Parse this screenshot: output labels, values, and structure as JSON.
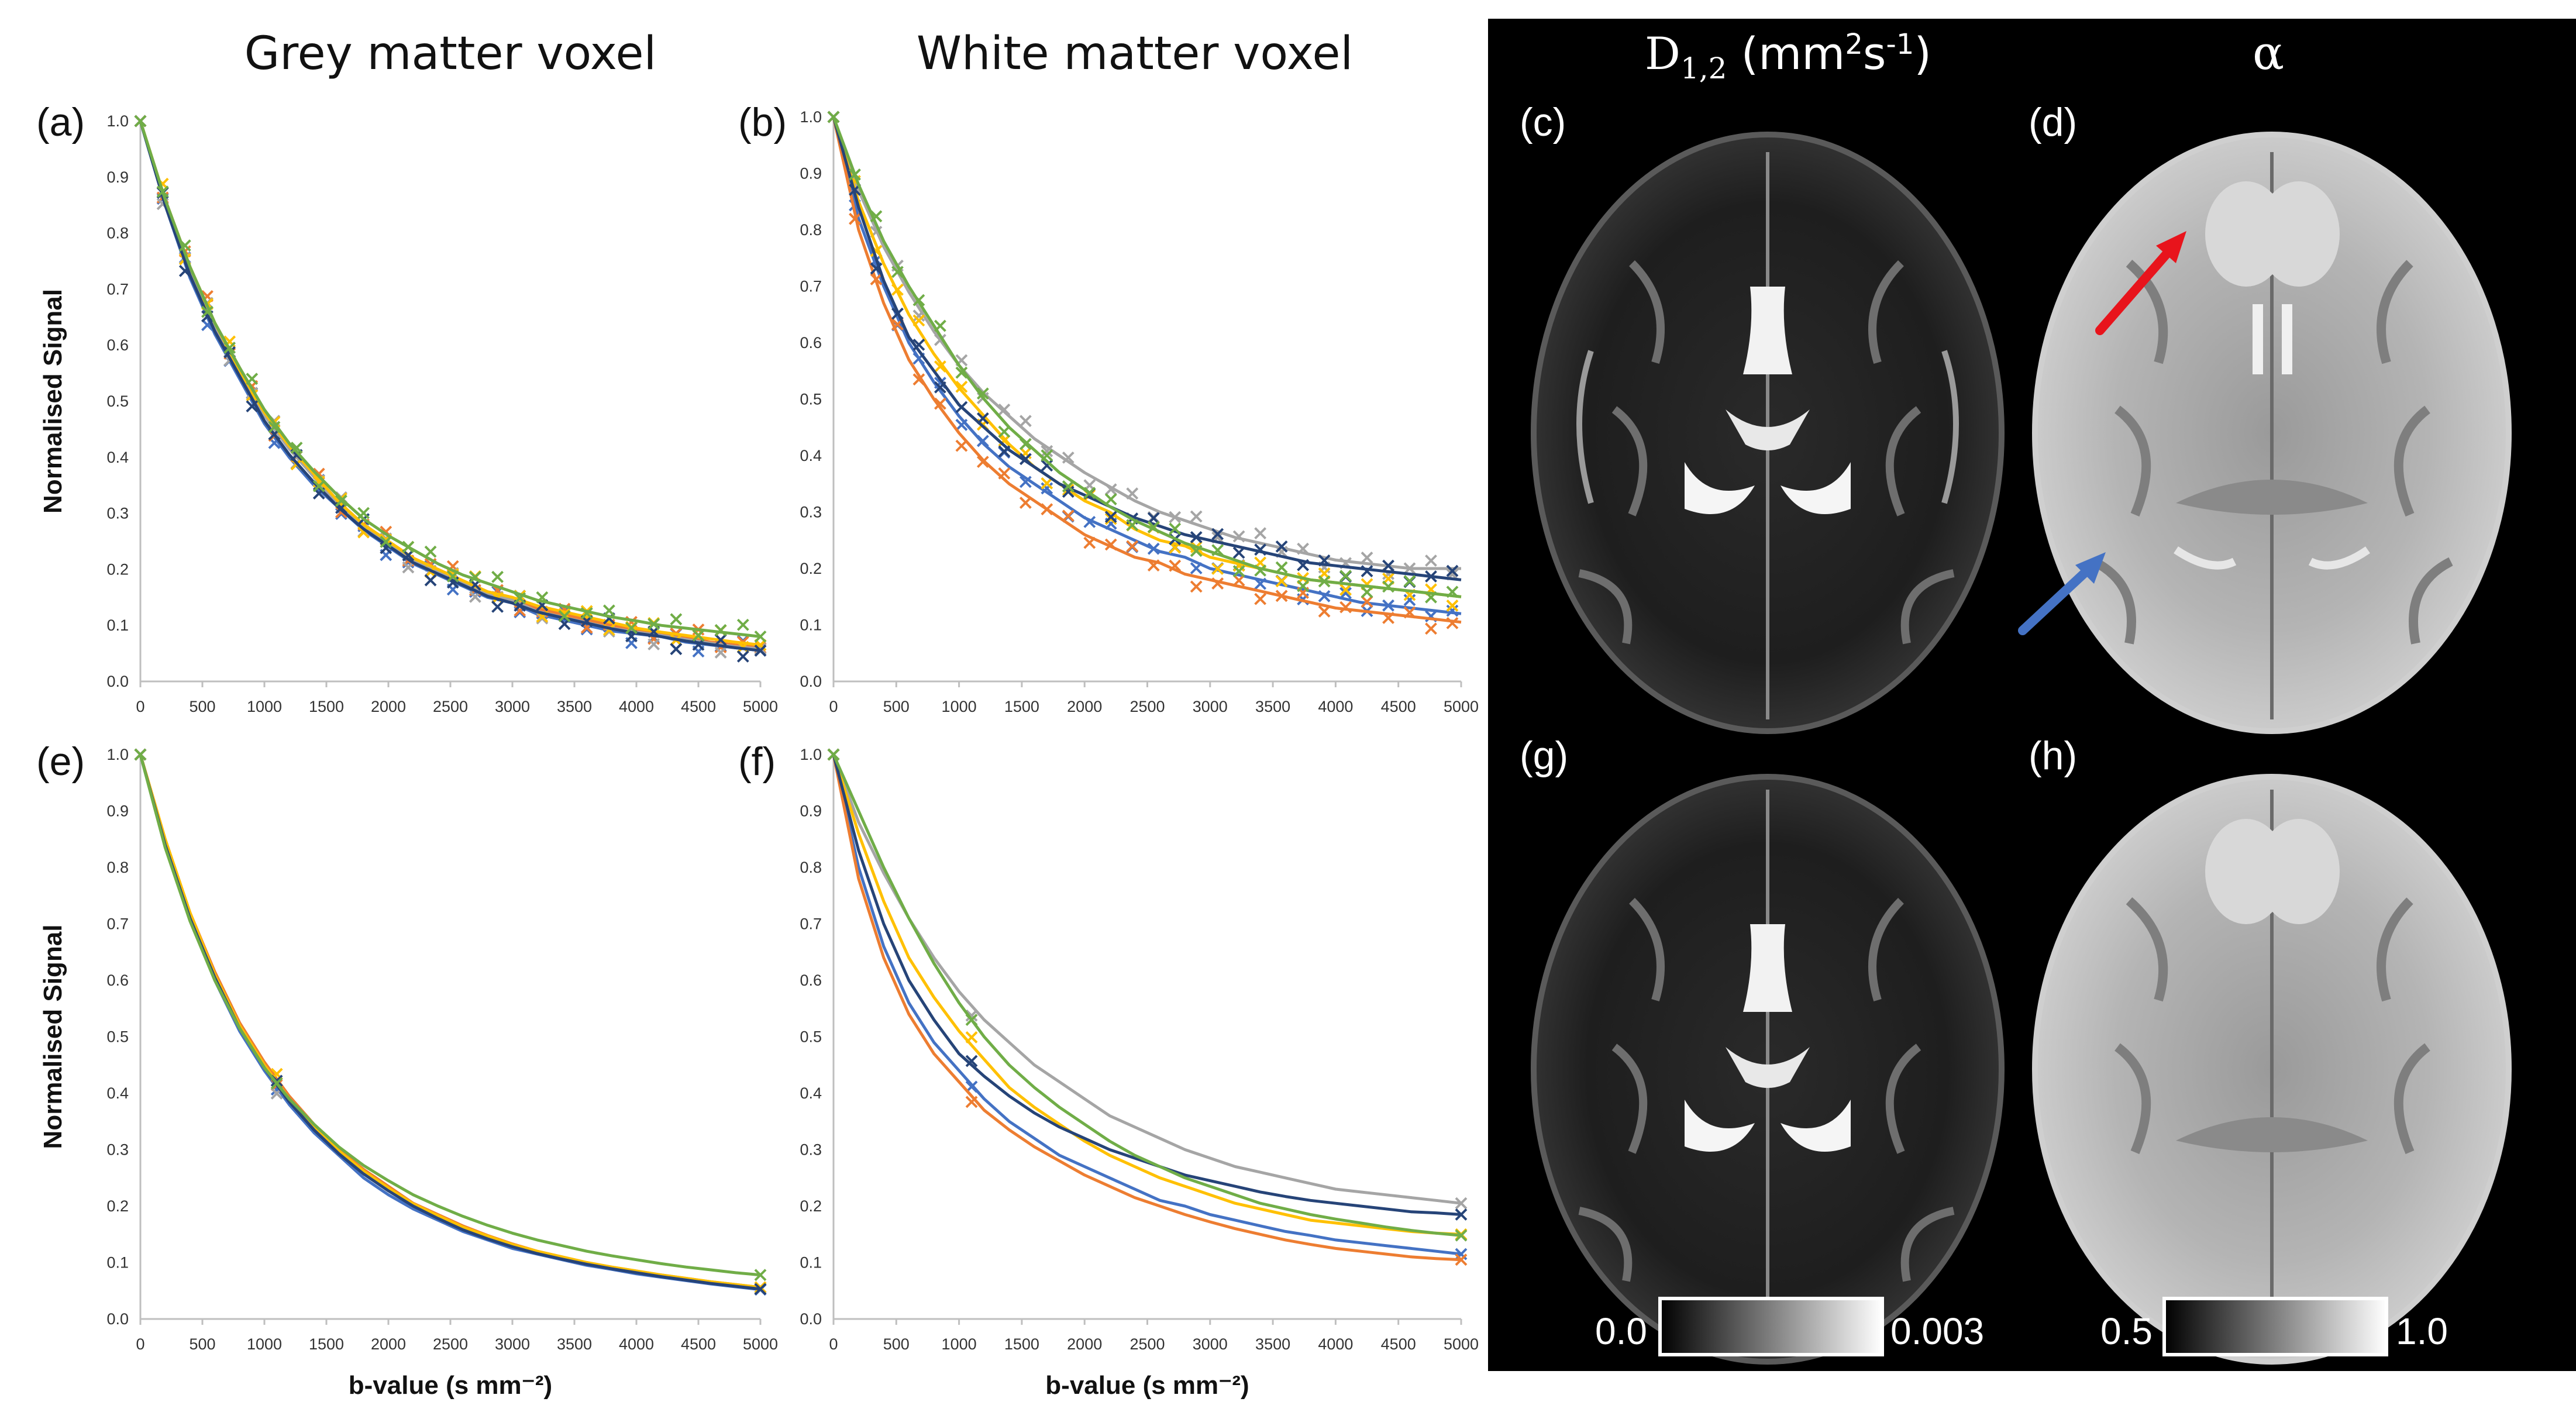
{
  "column_titles": {
    "grey": "Grey matter voxel",
    "white": "White matter voxel",
    "d12_prefix": "D",
    "d12_sub": "1,2",
    "d12_unit_open": " (mm",
    "d12_unit_sup2": "2",
    "d12_unit_mid": "s",
    "d12_unit_sup": "-1",
    "d12_unit_close": ")",
    "alpha": "α"
  },
  "panel_labels": [
    "(a)",
    "(b)",
    "(c)",
    "(d)",
    "(e)",
    "(f)",
    "(g)",
    "(h)"
  ],
  "colorbars": {
    "d12": {
      "min": "0.0",
      "max": "0.003"
    },
    "alpha": {
      "min": "0.5",
      "max": "1.0"
    }
  },
  "arrows": [
    {
      "panel": "d",
      "color": "#e8141c",
      "label": "red-arrow"
    },
    {
      "panel": "d",
      "color": "#4472c4",
      "label": "blue-arrow"
    }
  ],
  "chart_data": [
    {
      "panel": "(a)",
      "type": "line",
      "xlabel": "",
      "ylabel": "Normalised Signal",
      "xlim": [
        0,
        5000
      ],
      "ylim": [
        0,
        1.0
      ],
      "xticks": [
        0,
        500,
        1000,
        1500,
        2000,
        2500,
        3000,
        3500,
        4000,
        4500,
        5000
      ],
      "yticks": [
        0.0,
        0.1,
        0.2,
        0.3,
        0.4,
        0.5,
        0.6,
        0.7,
        0.8,
        0.9,
        1.0
      ],
      "x": [
        0,
        200,
        400,
        600,
        800,
        1000,
        1200,
        1400,
        1600,
        1800,
        2000,
        2200,
        2400,
        2600,
        2800,
        3000,
        3200,
        3400,
        3600,
        3800,
        4000,
        4200,
        4400,
        4600,
        4800,
        5000
      ],
      "series": [
        {
          "name": "blue",
          "color": "#4472c4",
          "values": [
            1.0,
            0.85,
            0.72,
            0.62,
            0.54,
            0.46,
            0.4,
            0.35,
            0.31,
            0.27,
            0.24,
            0.21,
            0.19,
            0.17,
            0.15,
            0.14,
            0.12,
            0.11,
            0.1,
            0.09,
            0.085,
            0.08,
            0.07,
            0.065,
            0.06,
            0.055
          ]
        },
        {
          "name": "orange",
          "color": "#ed7d31",
          "values": [
            1.0,
            0.86,
            0.74,
            0.64,
            0.56,
            0.48,
            0.42,
            0.37,
            0.32,
            0.28,
            0.25,
            0.22,
            0.2,
            0.18,
            0.16,
            0.15,
            0.13,
            0.12,
            0.11,
            0.1,
            0.09,
            0.085,
            0.08,
            0.07,
            0.065,
            0.06
          ]
        },
        {
          "name": "grey",
          "color": "#a5a5a5",
          "values": [
            1.0,
            0.855,
            0.735,
            0.635,
            0.555,
            0.475,
            0.415,
            0.365,
            0.315,
            0.275,
            0.245,
            0.215,
            0.195,
            0.175,
            0.155,
            0.145,
            0.125,
            0.115,
            0.105,
            0.095,
            0.088,
            0.082,
            0.075,
            0.068,
            0.062,
            0.058
          ]
        },
        {
          "name": "yellow",
          "color": "#ffc000",
          "values": [
            1.0,
            0.86,
            0.74,
            0.64,
            0.555,
            0.48,
            0.42,
            0.37,
            0.32,
            0.28,
            0.25,
            0.22,
            0.2,
            0.18,
            0.16,
            0.15,
            0.135,
            0.125,
            0.115,
            0.105,
            0.095,
            0.088,
            0.082,
            0.076,
            0.07,
            0.065
          ]
        },
        {
          "name": "darkblue",
          "color": "#264478",
          "values": [
            1.0,
            0.85,
            0.725,
            0.625,
            0.545,
            0.465,
            0.405,
            0.355,
            0.31,
            0.272,
            0.242,
            0.212,
            0.192,
            0.172,
            0.152,
            0.14,
            0.124,
            0.114,
            0.104,
            0.094,
            0.086,
            0.08,
            0.072,
            0.066,
            0.06,
            0.055
          ]
        },
        {
          "name": "green",
          "color": "#70ad47",
          "values": [
            1.0,
            0.86,
            0.74,
            0.64,
            0.56,
            0.485,
            0.425,
            0.375,
            0.33,
            0.29,
            0.26,
            0.235,
            0.21,
            0.19,
            0.175,
            0.16,
            0.145,
            0.135,
            0.125,
            0.115,
            0.108,
            0.1,
            0.095,
            0.09,
            0.085,
            0.08
          ]
        }
      ],
      "markers": "x",
      "marker_x": [
        0,
        180,
        360,
        540,
        720,
        900,
        1080,
        1260,
        1440,
        1620,
        1800,
        1980,
        2160,
        2340,
        2520,
        2700,
        2880,
        3060,
        3240,
        3420,
        3600,
        3780,
        3960,
        4140,
        4320,
        4500,
        4680,
        4860,
        5000
      ]
    },
    {
      "panel": "(b)",
      "type": "line",
      "xlabel": "",
      "ylabel": "",
      "xlim": [
        0,
        5000
      ],
      "ylim": [
        0,
        1.0
      ],
      "xticks": [
        0,
        500,
        1000,
        1500,
        2000,
        2500,
        3000,
        3500,
        4000,
        4500,
        5000
      ],
      "yticks": [
        0.0,
        0.1,
        0.2,
        0.3,
        0.4,
        0.5,
        0.6,
        0.7,
        0.8,
        0.9,
        1.0
      ],
      "x": [
        0,
        200,
        400,
        600,
        800,
        1000,
        1200,
        1400,
        1600,
        1800,
        2000,
        2200,
        2400,
        2600,
        2800,
        3000,
        3200,
        3400,
        3600,
        3800,
        4000,
        4200,
        4400,
        4600,
        4800,
        5000
      ],
      "series": [
        {
          "name": "blue",
          "color": "#4472c4",
          "values": [
            1.0,
            0.82,
            0.7,
            0.6,
            0.53,
            0.47,
            0.42,
            0.38,
            0.35,
            0.32,
            0.29,
            0.27,
            0.25,
            0.23,
            0.22,
            0.2,
            0.19,
            0.18,
            0.17,
            0.16,
            0.15,
            0.14,
            0.135,
            0.13,
            0.125,
            0.12
          ]
        },
        {
          "name": "orange",
          "color": "#ed7d31",
          "values": [
            1.0,
            0.8,
            0.67,
            0.57,
            0.5,
            0.44,
            0.39,
            0.35,
            0.32,
            0.29,
            0.26,
            0.24,
            0.22,
            0.21,
            0.19,
            0.18,
            0.17,
            0.16,
            0.15,
            0.14,
            0.13,
            0.125,
            0.12,
            0.115,
            0.11,
            0.105
          ]
        },
        {
          "name": "grey",
          "color": "#a5a5a5",
          "values": [
            1.0,
            0.87,
            0.77,
            0.69,
            0.62,
            0.56,
            0.51,
            0.47,
            0.43,
            0.4,
            0.37,
            0.345,
            0.32,
            0.3,
            0.285,
            0.27,
            0.255,
            0.245,
            0.235,
            0.225,
            0.215,
            0.21,
            0.205,
            0.2,
            0.2,
            0.2
          ]
        },
        {
          "name": "yellow",
          "color": "#ffc000",
          "values": [
            1.0,
            0.85,
            0.74,
            0.65,
            0.58,
            0.52,
            0.47,
            0.42,
            0.38,
            0.35,
            0.32,
            0.3,
            0.27,
            0.25,
            0.24,
            0.22,
            0.21,
            0.2,
            0.19,
            0.18,
            0.175,
            0.17,
            0.165,
            0.16,
            0.155,
            0.15
          ]
        },
        {
          "name": "darkblue",
          "color": "#264478",
          "values": [
            1.0,
            0.84,
            0.71,
            0.61,
            0.55,
            0.49,
            0.45,
            0.41,
            0.38,
            0.35,
            0.33,
            0.31,
            0.29,
            0.275,
            0.26,
            0.25,
            0.24,
            0.23,
            0.22,
            0.21,
            0.205,
            0.2,
            0.195,
            0.19,
            0.185,
            0.18
          ]
        },
        {
          "name": "green",
          "color": "#70ad47",
          "values": [
            1.0,
            0.88,
            0.78,
            0.7,
            0.63,
            0.56,
            0.5,
            0.45,
            0.41,
            0.37,
            0.34,
            0.31,
            0.285,
            0.265,
            0.245,
            0.23,
            0.215,
            0.2,
            0.19,
            0.18,
            0.175,
            0.17,
            0.165,
            0.16,
            0.155,
            0.15
          ]
        }
      ],
      "markers": "x",
      "marker_x": [
        0,
        170,
        340,
        510,
        680,
        850,
        1020,
        1190,
        1360,
        1530,
        1700,
        1870,
        2040,
        2210,
        2380,
        2550,
        2720,
        2890,
        3060,
        3230,
        3400,
        3570,
        3740,
        3910,
        4080,
        4250,
        4420,
        4590,
        4760,
        4930
      ]
    },
    {
      "panel": "(e)",
      "type": "line",
      "xlabel": "b-value (s mm⁻²)",
      "ylabel": "Normalised Signal",
      "xlim": [
        0,
        5000
      ],
      "ylim": [
        0,
        1.0
      ],
      "xticks": [
        0,
        500,
        1000,
        1500,
        2000,
        2500,
        3000,
        3500,
        4000,
        4500,
        5000
      ],
      "yticks": [
        0.0,
        0.1,
        0.2,
        0.3,
        0.4,
        0.5,
        0.6,
        0.7,
        0.8,
        0.9,
        1.0
      ],
      "x": [
        0,
        200,
        400,
        600,
        800,
        1000,
        1200,
        1400,
        1600,
        1800,
        2000,
        2200,
        2400,
        2600,
        2800,
        3000,
        3200,
        3400,
        3600,
        3800,
        4000,
        4200,
        4400,
        4600,
        4800,
        5000
      ],
      "series": [
        {
          "name": "blue",
          "color": "#4472c4",
          "values": [
            1.0,
            0.84,
            0.71,
            0.6,
            0.51,
            0.44,
            0.38,
            0.33,
            0.29,
            0.25,
            0.22,
            0.195,
            0.175,
            0.155,
            0.14,
            0.125,
            0.115,
            0.105,
            0.095,
            0.088,
            0.08,
            0.074,
            0.068,
            0.062,
            0.057,
            0.052
          ]
        },
        {
          "name": "orange",
          "color": "#ed7d31",
          "values": [
            1.0,
            0.85,
            0.72,
            0.615,
            0.525,
            0.455,
            0.395,
            0.345,
            0.3,
            0.265,
            0.235,
            0.205,
            0.185,
            0.165,
            0.148,
            0.133,
            0.12,
            0.11,
            0.1,
            0.092,
            0.085,
            0.078,
            0.072,
            0.066,
            0.061,
            0.056
          ]
        },
        {
          "name": "grey",
          "color": "#a5a5a5",
          "values": [
            1.0,
            0.845,
            0.715,
            0.607,
            0.518,
            0.447,
            0.387,
            0.337,
            0.295,
            0.258,
            0.228,
            0.2,
            0.18,
            0.16,
            0.144,
            0.13,
            0.118,
            0.108,
            0.098,
            0.09,
            0.083,
            0.076,
            0.07,
            0.064,
            0.059,
            0.054
          ]
        },
        {
          "name": "yellow",
          "color": "#ffc000",
          "values": [
            1.0,
            0.85,
            0.72,
            0.61,
            0.52,
            0.45,
            0.39,
            0.34,
            0.298,
            0.262,
            0.232,
            0.204,
            0.183,
            0.163,
            0.147,
            0.132,
            0.12,
            0.11,
            0.1,
            0.092,
            0.085,
            0.078,
            0.072,
            0.066,
            0.061,
            0.056
          ]
        },
        {
          "name": "darkblue",
          "color": "#264478",
          "values": [
            1.0,
            0.84,
            0.71,
            0.605,
            0.515,
            0.445,
            0.385,
            0.335,
            0.293,
            0.257,
            0.227,
            0.2,
            0.178,
            0.158,
            0.142,
            0.128,
            0.116,
            0.106,
            0.097,
            0.089,
            0.082,
            0.075,
            0.069,
            0.063,
            0.058,
            0.053
          ]
        },
        {
          "name": "green",
          "color": "#70ad47",
          "values": [
            1.0,
            0.835,
            0.705,
            0.6,
            0.515,
            0.445,
            0.39,
            0.345,
            0.305,
            0.272,
            0.245,
            0.22,
            0.2,
            0.182,
            0.166,
            0.152,
            0.14,
            0.13,
            0.12,
            0.112,
            0.105,
            0.098,
            0.092,
            0.087,
            0.082,
            0.078
          ]
        }
      ],
      "markers": "x",
      "marker_x": [
        0,
        1100,
        5000
      ]
    },
    {
      "panel": "(f)",
      "type": "line",
      "xlabel": "b-value  (s mm⁻²)",
      "ylabel": "",
      "xlim": [
        0,
        5000
      ],
      "ylim": [
        0,
        1.0
      ],
      "xticks": [
        0,
        500,
        1000,
        1500,
        2000,
        2500,
        3000,
        3500,
        4000,
        4500,
        5000
      ],
      "yticks": [
        0.0,
        0.1,
        0.2,
        0.3,
        0.4,
        0.5,
        0.6,
        0.7,
        0.8,
        0.9,
        1.0
      ],
      "x": [
        0,
        200,
        400,
        600,
        800,
        1000,
        1200,
        1400,
        1600,
        1800,
        2000,
        2200,
        2400,
        2600,
        2800,
        3000,
        3200,
        3400,
        3600,
        3800,
        4000,
        4200,
        4400,
        4600,
        4800,
        5000
      ],
      "series": [
        {
          "name": "blue",
          "color": "#4472c4",
          "values": [
            1.0,
            0.8,
            0.66,
            0.56,
            0.49,
            0.44,
            0.39,
            0.35,
            0.32,
            0.29,
            0.27,
            0.25,
            0.23,
            0.21,
            0.2,
            0.185,
            0.175,
            0.165,
            0.155,
            0.148,
            0.14,
            0.135,
            0.13,
            0.125,
            0.12,
            0.115
          ]
        },
        {
          "name": "orange",
          "color": "#ed7d31",
          "values": [
            1.0,
            0.78,
            0.64,
            0.54,
            0.47,
            0.42,
            0.37,
            0.335,
            0.305,
            0.28,
            0.255,
            0.235,
            0.215,
            0.2,
            0.185,
            0.172,
            0.16,
            0.15,
            0.14,
            0.132,
            0.125,
            0.12,
            0.115,
            0.11,
            0.107,
            0.105
          ]
        },
        {
          "name": "grey",
          "color": "#a5a5a5",
          "values": [
            1.0,
            0.88,
            0.79,
            0.71,
            0.64,
            0.58,
            0.53,
            0.49,
            0.45,
            0.42,
            0.39,
            0.36,
            0.34,
            0.32,
            0.3,
            0.285,
            0.27,
            0.26,
            0.25,
            0.24,
            0.23,
            0.225,
            0.22,
            0.215,
            0.21,
            0.205
          ]
        },
        {
          "name": "yellow",
          "color": "#ffc000",
          "values": [
            1.0,
            0.86,
            0.74,
            0.64,
            0.57,
            0.51,
            0.46,
            0.41,
            0.375,
            0.345,
            0.315,
            0.29,
            0.27,
            0.25,
            0.235,
            0.22,
            0.205,
            0.195,
            0.185,
            0.175,
            0.17,
            0.165,
            0.16,
            0.155,
            0.152,
            0.15
          ]
        },
        {
          "name": "darkblue",
          "color": "#264478",
          "values": [
            1.0,
            0.83,
            0.7,
            0.6,
            0.53,
            0.47,
            0.43,
            0.395,
            0.365,
            0.34,
            0.32,
            0.3,
            0.285,
            0.27,
            0.255,
            0.245,
            0.235,
            0.225,
            0.217,
            0.21,
            0.205,
            0.2,
            0.195,
            0.19,
            0.188,
            0.185
          ]
        },
        {
          "name": "green",
          "color": "#70ad47",
          "values": [
            1.0,
            0.9,
            0.8,
            0.71,
            0.63,
            0.56,
            0.5,
            0.45,
            0.41,
            0.375,
            0.345,
            0.315,
            0.29,
            0.27,
            0.25,
            0.235,
            0.22,
            0.205,
            0.195,
            0.185,
            0.177,
            0.17,
            0.163,
            0.157,
            0.152,
            0.148
          ]
        }
      ],
      "markers": "x",
      "marker_x": [
        0,
        1100,
        5000
      ]
    }
  ]
}
